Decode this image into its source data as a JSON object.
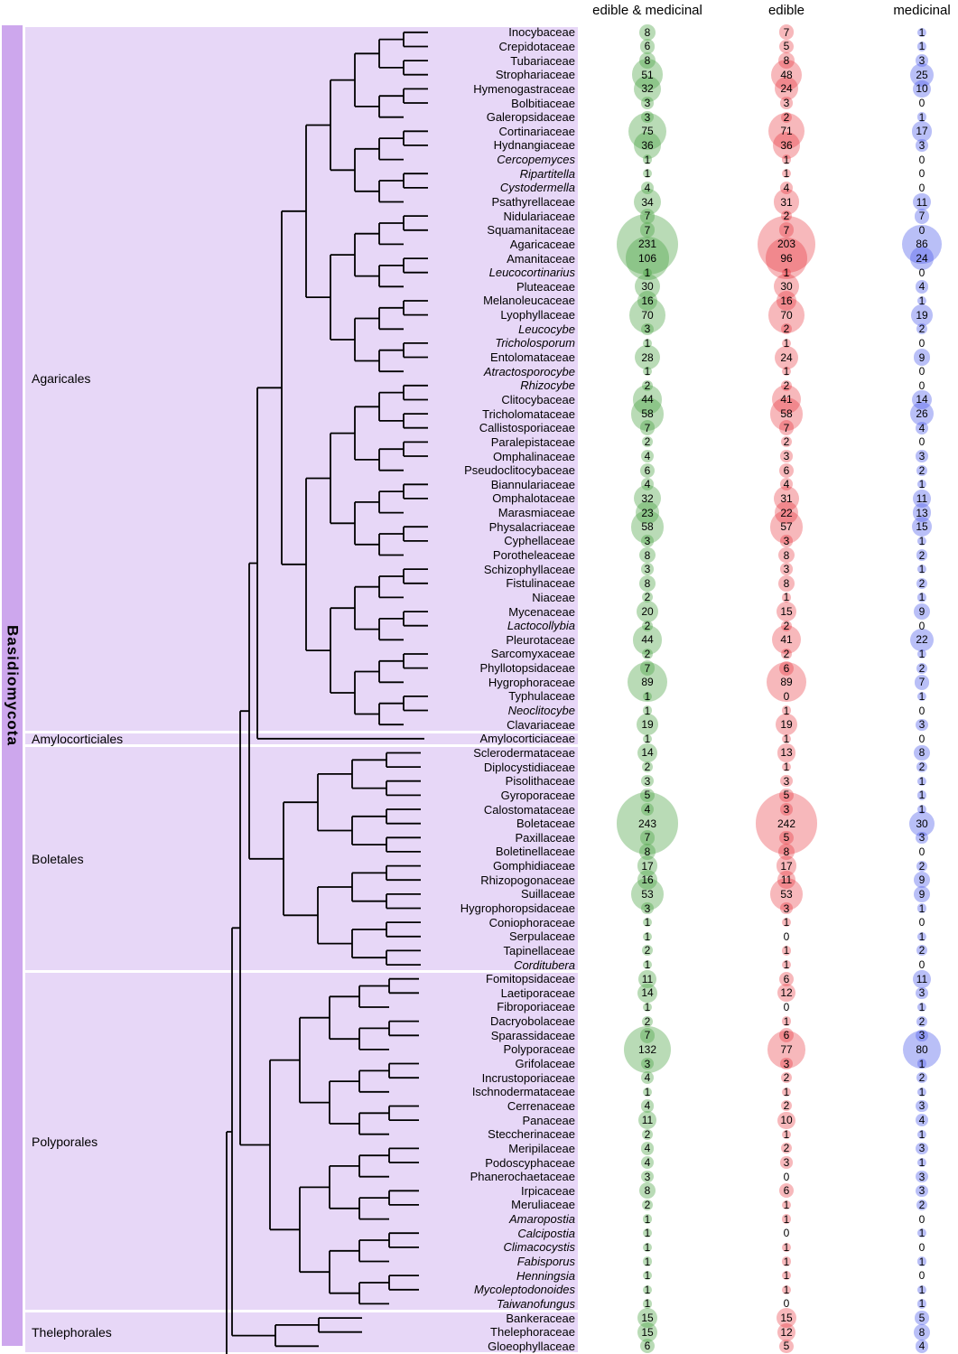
{
  "chart_data": {
    "type": "bubble",
    "description": "Phylogenetic tree of Basidiomycota families with bubble counts of edible and medicinal species",
    "phylum": "Basidiomycota",
    "columns": [
      "edible & medicinal",
      "edible",
      "medicinal"
    ],
    "colors": {
      "edible_and_medicinal": "#46a040",
      "edible": "#e62830",
      "medicinal": "#505feb",
      "order_band": "#e7d7f7",
      "phylum_strip": "#cda7ed",
      "tree_line": "#000000"
    },
    "orders": [
      {
        "name": "Agaricales",
        "families": [
          {
            "name": "Inocybaceae",
            "values": [
              8,
              7,
              1
            ]
          },
          {
            "name": "Crepidotaceae",
            "values": [
              6,
              5,
              1
            ]
          },
          {
            "name": "Tubariaceae",
            "values": [
              8,
              8,
              3
            ]
          },
          {
            "name": "Strophariaceae",
            "values": [
              51,
              48,
              25
            ]
          },
          {
            "name": "Hymenogastraceae",
            "values": [
              32,
              24,
              10
            ]
          },
          {
            "name": "Bolbitiaceae",
            "values": [
              3,
              3,
              0
            ]
          },
          {
            "name": "Galeropsidaceae",
            "values": [
              3,
              2,
              1
            ]
          },
          {
            "name": "Cortinariaceae",
            "values": [
              75,
              71,
              17
            ]
          },
          {
            "name": "Hydnangiaceae",
            "values": [
              36,
              36,
              3
            ]
          },
          {
            "name": "Cercopemyces",
            "i": true,
            "values": [
              1,
              1,
              0
            ]
          },
          {
            "name": "Ripartitella",
            "i": true,
            "values": [
              1,
              1,
              0
            ]
          },
          {
            "name": "Cystodermella",
            "i": true,
            "values": [
              4,
              4,
              0
            ]
          },
          {
            "name": "Psathyrellaceae",
            "values": [
              34,
              31,
              11
            ]
          },
          {
            "name": "Nidulariaceae",
            "values": [
              7,
              2,
              7
            ]
          },
          {
            "name": "Squamanitaceae",
            "values": [
              7,
              7,
              0
            ]
          },
          {
            "name": "Agaricaceae",
            "values": [
              231,
              203,
              86
            ]
          },
          {
            "name": "Amanitaceae",
            "values": [
              106,
              96,
              24
            ]
          },
          {
            "name": "Leucocortinarius",
            "i": true,
            "values": [
              1,
              1,
              0
            ]
          },
          {
            "name": "Pluteaceae",
            "values": [
              30,
              30,
              4
            ]
          },
          {
            "name": "Melanoleucaceae",
            "values": [
              16,
              16,
              1
            ]
          },
          {
            "name": "Lyophyllaceae",
            "values": [
              70,
              70,
              19
            ]
          },
          {
            "name": "Leucocybe",
            "i": true,
            "values": [
              3,
              2,
              2
            ]
          },
          {
            "name": "Tricholosporum",
            "i": true,
            "values": [
              1,
              1,
              0
            ]
          },
          {
            "name": "Entolomataceae",
            "values": [
              28,
              24,
              9
            ]
          },
          {
            "name": "Atractosporocybe",
            "i": true,
            "values": [
              1,
              1,
              0
            ]
          },
          {
            "name": "Rhizocybe",
            "i": true,
            "values": [
              2,
              2,
              0
            ]
          },
          {
            "name": "Clitocybaceae",
            "values": [
              44,
              41,
              14
            ]
          },
          {
            "name": "Tricholomataceae",
            "values": [
              58,
              58,
              26
            ]
          },
          {
            "name": "Callistosporiaceae",
            "values": [
              7,
              7,
              4
            ]
          },
          {
            "name": "Paralepistaceae",
            "values": [
              2,
              2,
              0
            ]
          },
          {
            "name": "Omphalinaceae",
            "values": [
              4,
              3,
              3
            ]
          },
          {
            "name": "Pseudoclitocybaceae",
            "values": [
              6,
              6,
              2
            ]
          },
          {
            "name": "Biannulariaceae",
            "values": [
              4,
              4,
              1
            ]
          },
          {
            "name": "Omphalotaceae",
            "values": [
              32,
              31,
              11
            ]
          },
          {
            "name": "Marasmiaceae",
            "values": [
              23,
              22,
              13
            ]
          },
          {
            "name": "Physalacriaceae",
            "values": [
              58,
              57,
              15
            ]
          },
          {
            "name": "Cyphellaceae",
            "values": [
              3,
              3,
              1
            ]
          },
          {
            "name": "Porotheleaceae",
            "values": [
              8,
              8,
              2
            ]
          },
          {
            "name": "Schizophyllaceae",
            "values": [
              3,
              3,
              1
            ]
          },
          {
            "name": "Fistulinaceae",
            "values": [
              8,
              8,
              2
            ]
          },
          {
            "name": "Niaceae",
            "values": [
              2,
              1,
              1
            ]
          },
          {
            "name": "Mycenaceae",
            "values": [
              20,
              15,
              9
            ]
          },
          {
            "name": "Lactocollybia",
            "i": true,
            "values": [
              2,
              2,
              0
            ]
          },
          {
            "name": "Pleurotaceae",
            "values": [
              44,
              41,
              22
            ]
          },
          {
            "name": "Sarcomyxaceae",
            "values": [
              2,
              2,
              1
            ]
          },
          {
            "name": "Phyllotopsidaceae",
            "values": [
              7,
              6,
              2
            ]
          },
          {
            "name": "Hygrophoraceae",
            "values": [
              89,
              89,
              7
            ]
          },
          {
            "name": "Typhulaceae",
            "values": [
              1,
              0,
              1
            ]
          },
          {
            "name": "Neoclitocybe",
            "i": true,
            "values": [
              1,
              1,
              0
            ]
          },
          {
            "name": "Clavariaceae",
            "values": [
              19,
              19,
              3
            ]
          }
        ]
      },
      {
        "name": "Amylocorticiales",
        "families": [
          {
            "name": "Amylocorticiaceae",
            "values": [
              1,
              1,
              0
            ]
          }
        ]
      },
      {
        "name": "Boletales",
        "families": [
          {
            "name": "Sclerodermataceae",
            "values": [
              14,
              13,
              8
            ]
          },
          {
            "name": "Diplocystidiaceae",
            "values": [
              2,
              1,
              2
            ]
          },
          {
            "name": "Pisolithaceae",
            "values": [
              3,
              3,
              1
            ]
          },
          {
            "name": "Gyroporaceae",
            "values": [
              5,
              5,
              1
            ]
          },
          {
            "name": "Calostomataceae",
            "values": [
              4,
              3,
              1
            ]
          },
          {
            "name": "Boletaceae",
            "values": [
              243,
              242,
              30
            ]
          },
          {
            "name": "Paxillaceae",
            "values": [
              7,
              5,
              3
            ]
          },
          {
            "name": "Boletinellaceae",
            "values": [
              8,
              8,
              0
            ]
          },
          {
            "name": "Gomphidiaceae",
            "values": [
              17,
              17,
              2
            ]
          },
          {
            "name": "Rhizopogonaceae",
            "values": [
              16,
              11,
              9
            ]
          },
          {
            "name": "Suillaceae",
            "values": [
              53,
              53,
              9
            ]
          },
          {
            "name": "Hygrophoropsidaceae",
            "values": [
              3,
              3,
              1
            ]
          },
          {
            "name": "Coniophoraceae",
            "values": [
              1,
              1,
              0
            ]
          },
          {
            "name": "Serpulaceae",
            "values": [
              1,
              0,
              1
            ]
          },
          {
            "name": "Tapinellaceae",
            "values": [
              2,
              1,
              2
            ]
          },
          {
            "name": "Corditubera",
            "i": true,
            "values": [
              1,
              1,
              0
            ]
          }
        ]
      },
      {
        "name": "Polyporales",
        "families": [
          {
            "name": "Fomitopsidaceae",
            "values": [
              11,
              6,
              11
            ]
          },
          {
            "name": "Laetiporaceae",
            "values": [
              14,
              12,
              3
            ]
          },
          {
            "name": "Fibroporiaceae",
            "values": [
              1,
              0,
              1
            ]
          },
          {
            "name": "Dacryobolaceae",
            "values": [
              2,
              1,
              2
            ]
          },
          {
            "name": "Sparassidaceae",
            "values": [
              7,
              6,
              3
            ]
          },
          {
            "name": "Polyporaceae",
            "values": [
              132,
              77,
              80
            ]
          },
          {
            "name": "Grifolaceae",
            "values": [
              3,
              3,
              1
            ]
          },
          {
            "name": "Incrustoporiaceae",
            "values": [
              4,
              2,
              2
            ]
          },
          {
            "name": "Ischnodermataceae",
            "values": [
              1,
              1,
              1
            ]
          },
          {
            "name": "Cerrenaceae",
            "values": [
              4,
              2,
              3
            ]
          },
          {
            "name": "Panaceae",
            "values": [
              11,
              10,
              4
            ]
          },
          {
            "name": "Steccherinaceae",
            "values": [
              2,
              1,
              1
            ]
          },
          {
            "name": "Meripilaceae",
            "values": [
              4,
              2,
              3
            ]
          },
          {
            "name": "Podoscyphaceae",
            "values": [
              4,
              3,
              1
            ]
          },
          {
            "name": "Phanerochaetaceae",
            "values": [
              3,
              0,
              3
            ]
          },
          {
            "name": "Irpicaceae",
            "values": [
              8,
              6,
              3
            ]
          },
          {
            "name": "Meruliaceae",
            "values": [
              2,
              1,
              2
            ]
          },
          {
            "name": "Amaropostia",
            "i": true,
            "values": [
              1,
              1,
              0
            ]
          },
          {
            "name": "Calcipostia",
            "i": true,
            "values": [
              1,
              0,
              1
            ]
          },
          {
            "name": "Climacocystis",
            "i": true,
            "values": [
              1,
              1,
              0
            ]
          },
          {
            "name": "Fabisporus",
            "i": true,
            "values": [
              1,
              1,
              1
            ]
          },
          {
            "name": "Henningsia",
            "i": true,
            "values": [
              1,
              1,
              0
            ]
          },
          {
            "name": "Mycoleptodonoides",
            "i": true,
            "values": [
              1,
              1,
              1
            ]
          },
          {
            "name": "Taiwanofungus",
            "i": true,
            "values": [
              1,
              0,
              1
            ]
          }
        ]
      },
      {
        "name": "Thelephorales",
        "families": [
          {
            "name": "Bankeraceae",
            "values": [
              15,
              15,
              5
            ]
          },
          {
            "name": "Thelephoraceae",
            "values": [
              15,
              12,
              8
            ]
          },
          {
            "name": "Gloeophyllaceae",
            "values": [
              6,
              5,
              4
            ]
          }
        ]
      }
    ]
  }
}
